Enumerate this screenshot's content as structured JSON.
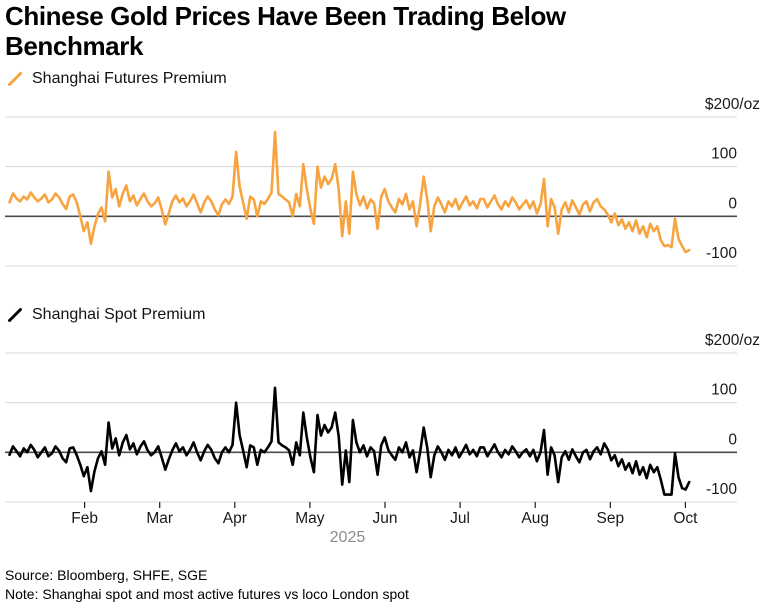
{
  "title": "Chinese Gold Prices Have Been Trading Below Benchmark",
  "legends": {
    "futures": "Shanghai Futures Premium",
    "spot": "Shanghai Spot Premium"
  },
  "footer": {
    "source": "Source: Bloomberg, SHFE, SGE",
    "note": "Note: Shanghai spot and most active futures vs loco London spot"
  },
  "colors": {
    "futures_line": "#F7A440",
    "spot_line": "#000000",
    "grid": "#D8D8D8",
    "zero_axis": "#4D4D4D",
    "tick_label": "#1A1A1A",
    "year_label": "#8C8C8C"
  },
  "chart_data": [
    {
      "type": "line",
      "name": "Shanghai Futures Premium",
      "color": "#F7A440",
      "ylim": [
        -130,
        230
      ],
      "y_ticks": [
        {
          "value": 200,
          "label": "$200/oz"
        },
        {
          "value": 100,
          "label": "100"
        },
        {
          "value": 0,
          "label": "0"
        },
        {
          "value": -100,
          "label": "-100"
        }
      ],
      "x_ticks": [
        "Feb",
        "Mar",
        "Apr",
        "May",
        "Jun",
        "Jul",
        "Aug",
        "Sep",
        "Oct"
      ],
      "show_x_axis": false,
      "year": "2025",
      "values": [
        28,
        46,
        36,
        30,
        40,
        34,
        48,
        38,
        30,
        36,
        44,
        28,
        34,
        46,
        38,
        25,
        15,
        40,
        44,
        28,
        0,
        -30,
        -12,
        -55,
        -20,
        5,
        18,
        -10,
        90,
        38,
        55,
        20,
        46,
        62,
        30,
        42,
        22,
        35,
        46,
        30,
        20,
        26,
        38,
        14,
        -16,
        6,
        30,
        42,
        28,
        36,
        20,
        30,
        44,
        26,
        8,
        28,
        40,
        30,
        14,
        2,
        24,
        34,
        25,
        40,
        130,
        60,
        28,
        -5,
        40,
        34,
        0,
        30,
        25,
        35,
        48,
        170,
        45,
        40,
        34,
        28,
        0,
        45,
        20,
        105,
        55,
        15,
        -15,
        100,
        58,
        80,
        65,
        75,
        105,
        55,
        -40,
        30,
        -35,
        90,
        45,
        22,
        40,
        16,
        34,
        26,
        -25,
        40,
        55,
        30,
        18,
        8,
        35,
        24,
        45,
        14,
        30,
        -20,
        24,
        80,
        35,
        -30,
        20,
        38,
        24,
        8,
        30,
        20,
        35,
        14,
        28,
        40,
        22,
        30,
        16,
        35,
        35,
        18,
        30,
        42,
        24,
        14,
        30,
        20,
        38,
        28,
        14,
        24,
        32,
        16,
        30,
        6,
        24,
        75,
        -20,
        35,
        18,
        -35,
        14,
        28,
        8,
        32,
        18,
        4,
        24,
        30,
        10,
        28,
        35,
        20,
        14,
        4,
        -12,
        6,
        -18,
        -6,
        -25,
        -12,
        -30,
        -8,
        -35,
        -20,
        -42,
        -15,
        -30,
        -20,
        -48,
        -60,
        -58,
        -62,
        -5,
        -45,
        -60,
        -72,
        -68
      ]
    },
    {
      "type": "line",
      "name": "Shanghai Spot Premium",
      "color": "#000000",
      "ylim": [
        -130,
        230
      ],
      "y_ticks": [
        {
          "value": 200,
          "label": "$200/oz"
        },
        {
          "value": 100,
          "label": "100"
        },
        {
          "value": 0,
          "label": "0"
        },
        {
          "value": -100,
          "label": "-100"
        }
      ],
      "x_ticks": [
        "Feb",
        "Mar",
        "Apr",
        "May",
        "Jun",
        "Jul",
        "Aug",
        "Sep",
        "Oct"
      ],
      "show_x_axis": true,
      "year": "2025",
      "values": [
        -5,
        12,
        2,
        -8,
        8,
        0,
        15,
        5,
        -10,
        0,
        10,
        -8,
        -2,
        12,
        3,
        -12,
        -20,
        8,
        10,
        -6,
        -25,
        -48,
        -30,
        -78,
        -38,
        -12,
        2,
        -25,
        60,
        8,
        28,
        -6,
        20,
        35,
        6,
        18,
        -4,
        12,
        22,
        4,
        -6,
        0,
        12,
        -10,
        -35,
        -14,
        4,
        18,
        2,
        10,
        -6,
        5,
        20,
        0,
        -16,
        2,
        15,
        5,
        -12,
        -22,
        0,
        10,
        0,
        15,
        100,
        35,
        4,
        -30,
        14,
        10,
        -25,
        5,
        0,
        10,
        22,
        130,
        20,
        14,
        10,
        4,
        -25,
        20,
        -6,
        80,
        30,
        -10,
        -40,
        75,
        34,
        55,
        40,
        50,
        80,
        32,
        -65,
        4,
        -60,
        65,
        20,
        0,
        14,
        -8,
        10,
        2,
        -45,
        14,
        30,
        5,
        -6,
        -15,
        10,
        0,
        20,
        -10,
        4,
        -40,
        0,
        50,
        10,
        -50,
        -6,
        12,
        0,
        -15,
        5,
        -6,
        10,
        -10,
        2,
        15,
        -4,
        5,
        -8,
        10,
        10,
        -8,
        4,
        16,
        0,
        -10,
        5,
        -4,
        12,
        2,
        -10,
        0,
        6,
        -8,
        5,
        -18,
        0,
        45,
        -45,
        10,
        -6,
        -60,
        -10,
        2,
        -15,
        6,
        -8,
        -20,
        0,
        5,
        -14,
        2,
        10,
        -4,
        18,
        6,
        -16,
        -6,
        -28,
        -14,
        -35,
        -22,
        -42,
        -18,
        -45,
        -30,
        -52,
        -25,
        -40,
        -30,
        -55,
        -85,
        -85,
        -85,
        -2,
        -50,
        -72,
        -75,
        -60
      ]
    }
  ]
}
